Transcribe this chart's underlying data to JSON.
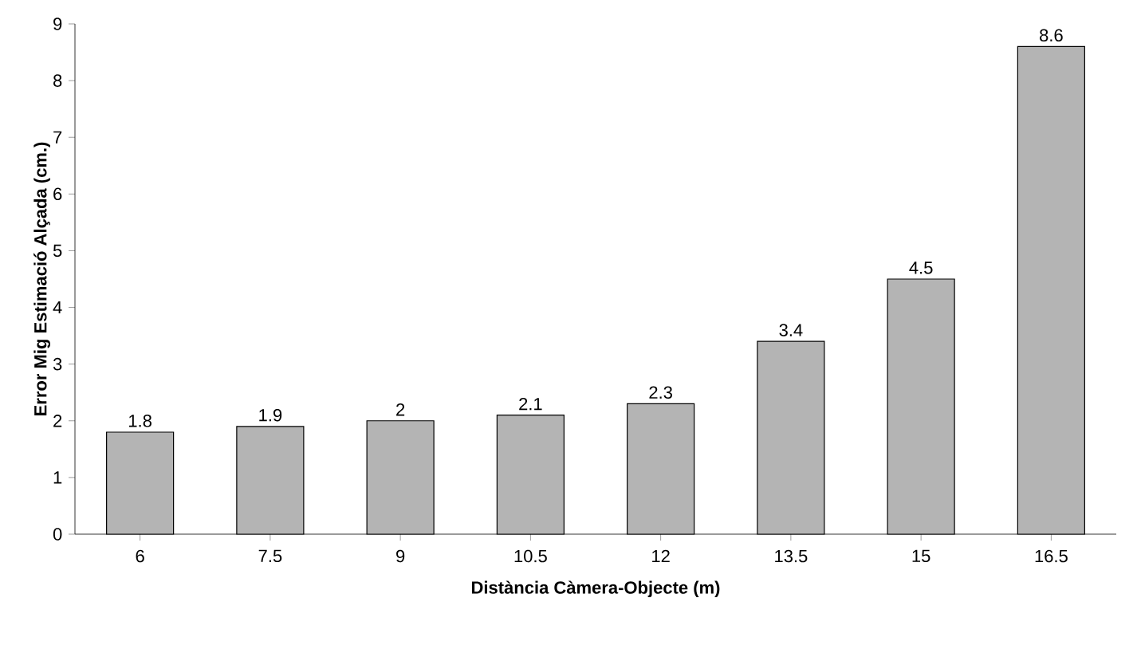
{
  "chart_data": {
    "type": "bar",
    "xlabel": "Distància Càmera-Objecte (m)",
    "ylabel": "Error Mig Estimació Alçada (cm.)",
    "categories": [
      "6",
      "7.5",
      "9",
      "10.5",
      "12",
      "13.5",
      "15",
      "16.5"
    ],
    "values": [
      1.8,
      1.9,
      2,
      2.1,
      2.3,
      3.4,
      4.5,
      8.6
    ],
    "color": "#b4b4b4",
    "ylim": [
      0,
      9
    ],
    "yticks": [
      0,
      1,
      2,
      3,
      4,
      5,
      6,
      7,
      8,
      9
    ],
    "data_labels": true,
    "grid": false
  }
}
